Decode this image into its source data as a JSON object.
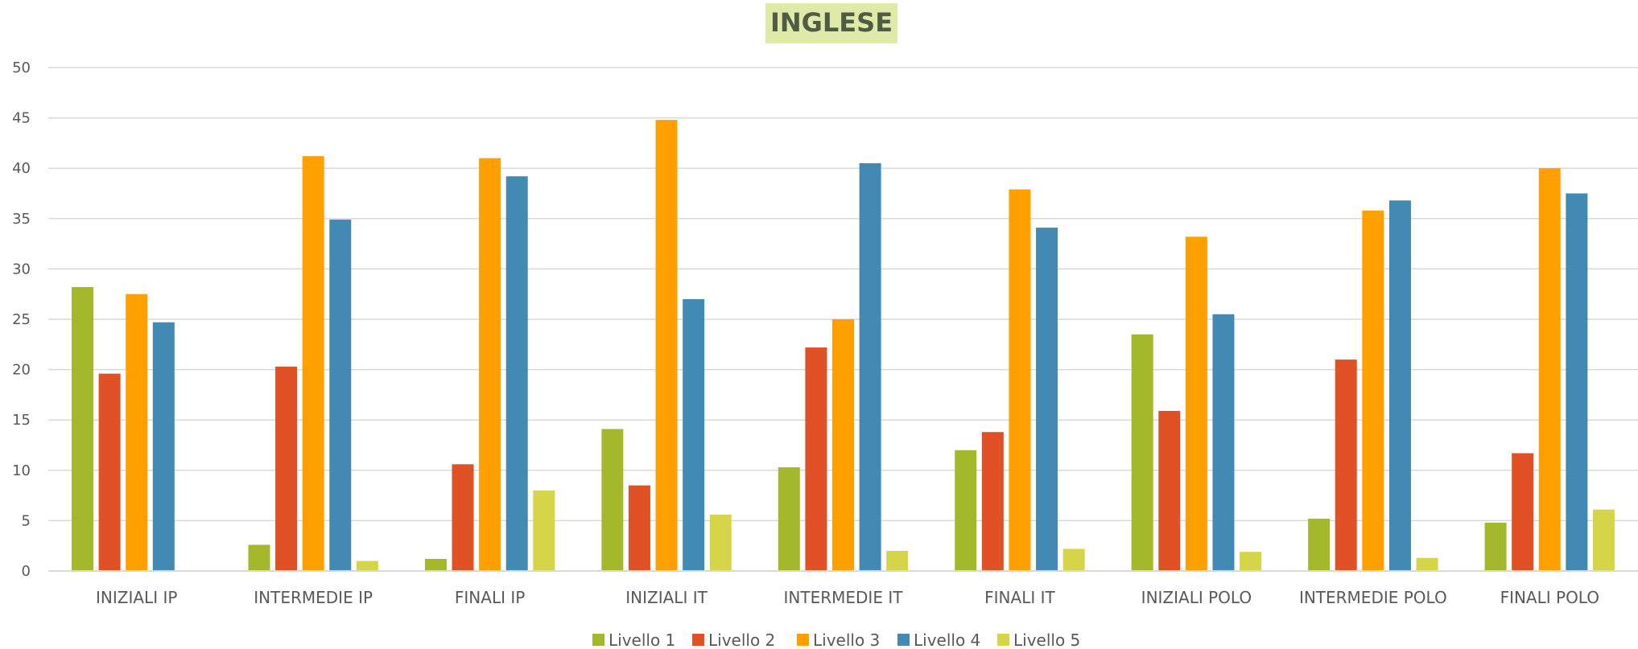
{
  "chart_data": {
    "type": "bar",
    "title": "INGLESE",
    "xlabel": "",
    "ylabel": "",
    "ylim": [
      0,
      50
    ],
    "y_ticks": [
      0,
      5,
      10,
      15,
      20,
      25,
      30,
      35,
      40,
      45,
      50
    ],
    "grid": true,
    "legend_position": "bottom",
    "categories": [
      "INIZIALI IP",
      "INTERMEDIE IP",
      "FINALI IP",
      "INIZIALI IT",
      "INTERMEDIE IT",
      "FINALI IT",
      "INIZIALI POLO",
      "INTERMEDIE POLO",
      "FINALI POLO"
    ],
    "series": [
      {
        "name": "Livello 1",
        "color": "#a5b82c",
        "values": [
          28.2,
          2.6,
          1.2,
          14.1,
          10.3,
          12.0,
          23.5,
          5.2,
          4.8
        ]
      },
      {
        "name": "Livello 2",
        "color": "#e05226",
        "values": [
          19.6,
          20.3,
          10.6,
          8.5,
          22.2,
          13.8,
          15.9,
          21.0,
          11.7
        ]
      },
      {
        "name": "Livello 3",
        "color": "#ffa000",
        "values": [
          27.5,
          41.2,
          41.0,
          44.8,
          25.0,
          37.9,
          33.2,
          35.8,
          40.0
        ]
      },
      {
        "name": "Livello 4",
        "color": "#428ab4",
        "values": [
          24.7,
          34.9,
          39.2,
          27.0,
          40.5,
          34.1,
          25.5,
          36.8,
          37.5
        ]
      },
      {
        "name": "Livello 5",
        "color": "#d6d54a",
        "values": [
          0,
          1.0,
          8.0,
          5.6,
          2.0,
          2.2,
          1.9,
          1.3,
          6.1
        ]
      }
    ]
  }
}
